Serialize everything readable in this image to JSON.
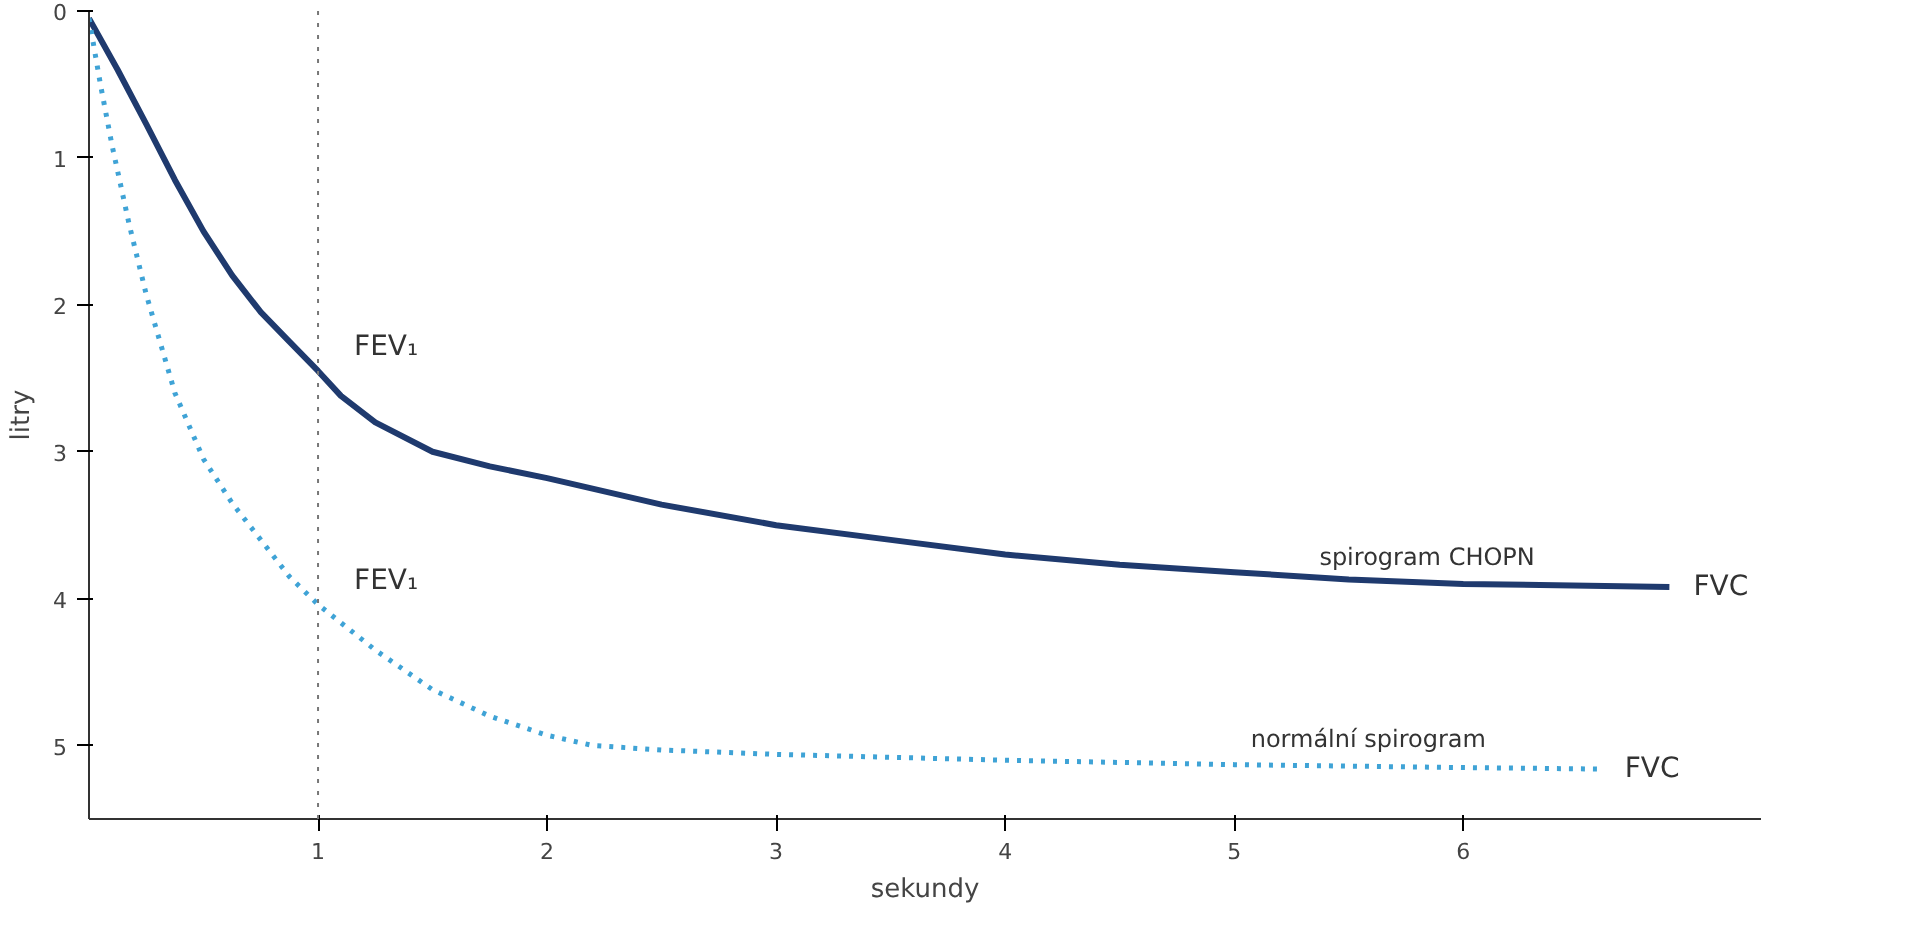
{
  "chart_data": {
    "type": "line",
    "xlabel": "sekundy",
    "ylabel": "litry",
    "xlim": [
      0,
      7.3
    ],
    "ylim": [
      5.5,
      0
    ],
    "xticks": [
      1,
      2,
      3,
      4,
      5,
      6
    ],
    "yticks": [
      0,
      1,
      2,
      3,
      4,
      5
    ],
    "grid": false,
    "marker": "none",
    "series": [
      {
        "name": "spirogram CHOPN",
        "color": "#1f3a6e",
        "line_style": "solid",
        "x": [
          0,
          0.125,
          0.25,
          0.375,
          0.5,
          0.625,
          0.75,
          0.875,
          1,
          1.1,
          1.25,
          1.5,
          1.75,
          2,
          2.5,
          3,
          3.5,
          4,
          4.5,
          5,
          5.5,
          6,
          6.9
        ],
        "values": [
          0.05,
          0.4,
          0.77,
          1.15,
          1.5,
          1.8,
          2.05,
          2.25,
          2.45,
          2.62,
          2.8,
          3.0,
          3.1,
          3.18,
          3.36,
          3.5,
          3.6,
          3.7,
          3.77,
          3.82,
          3.87,
          3.9,
          3.92
        ]
      },
      {
        "name": "normální spirogram",
        "color": "#3fa3d6",
        "line_style": "dotted",
        "x": [
          0,
          0.05,
          0.1,
          0.175,
          0.25,
          0.375,
          0.5,
          0.625,
          0.75,
          0.875,
          1,
          1.25,
          1.5,
          1.75,
          2,
          2.2,
          2.5,
          3,
          4,
          5,
          6,
          6.6
        ],
        "values": [
          0.05,
          0.5,
          0.91,
          1.45,
          1.93,
          2.6,
          3.05,
          3.35,
          3.6,
          3.85,
          4.04,
          4.35,
          4.62,
          4.8,
          4.93,
          5.0,
          5.03,
          5.06,
          5.1,
          5.13,
          5.15,
          5.16
        ]
      }
    ],
    "ref_lines": [
      {
        "axis": "x",
        "value": 1,
        "color": "#777777",
        "line_style": "dotted"
      }
    ],
    "annotations": [
      {
        "text": "FEV₁",
        "x": 1,
        "y": 2.45
      },
      {
        "text": "FEV₁",
        "x": 1,
        "y": 4.04
      },
      {
        "text": "FVC",
        "x": 6.9,
        "y": 3.92
      },
      {
        "text": "FVC",
        "x": 6.6,
        "y": 5.16
      }
    ]
  }
}
